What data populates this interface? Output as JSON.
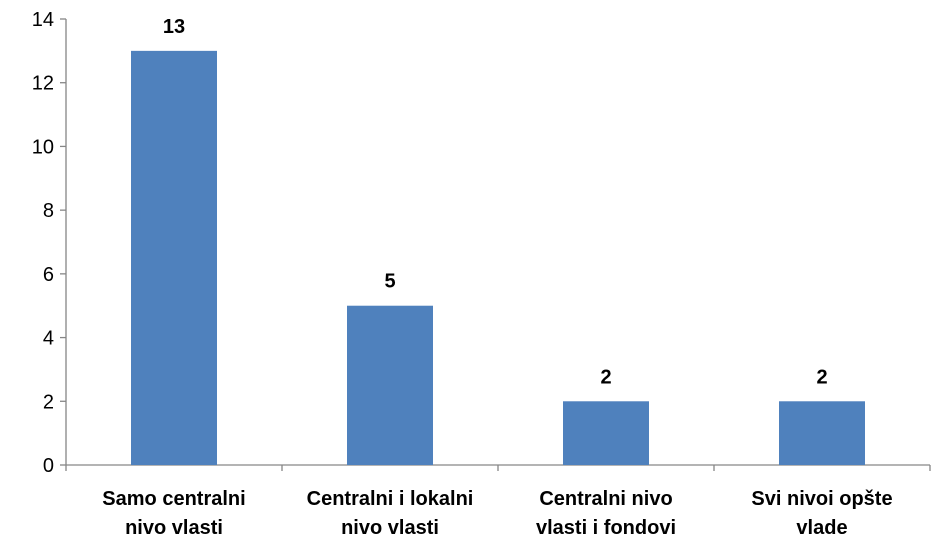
{
  "chart_data": {
    "type": "bar",
    "categories": [
      [
        "Samo centralni",
        "nivo vlasti"
      ],
      [
        "Centralni i lokalni",
        "nivo vlasti"
      ],
      [
        "Centralni nivo",
        "vlasti i fondovi"
      ],
      [
        "Svi nivoi opšte",
        "vlade"
      ]
    ],
    "values": [
      13,
      5,
      2,
      2
    ],
    "data_labels": [
      "13",
      "5",
      "2",
      "2"
    ],
    "title": "",
    "xlabel": "",
    "ylabel": "",
    "ylim": [
      0,
      14
    ],
    "yticks": [
      0,
      2,
      4,
      6,
      8,
      10,
      12,
      14
    ],
    "grid": false,
    "legend": "none",
    "bar_color": "#4F81BD",
    "axis_color": "#868686"
  }
}
